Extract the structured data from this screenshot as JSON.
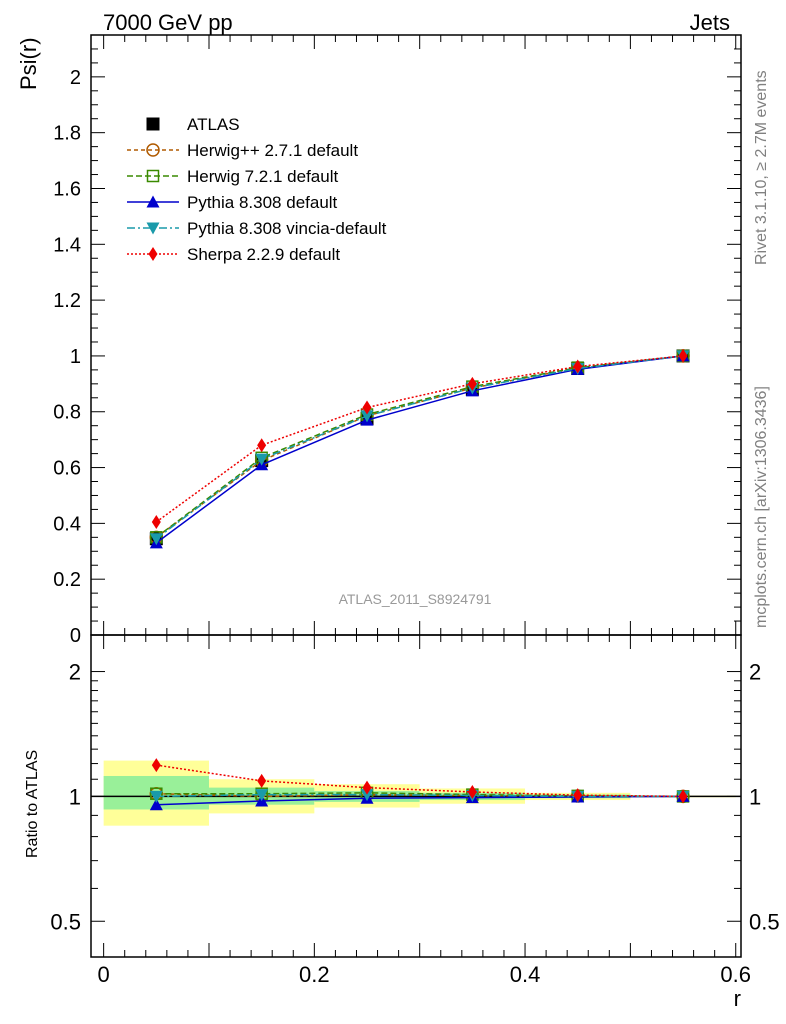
{
  "header": {
    "left": "7000 GeV pp",
    "right": "Jets"
  },
  "side_texts": {
    "rivet": "Rivet 3.1.10, ≥ 2.7M events",
    "mcplots": "mcplots.cern.ch [arXiv:1306.3436]"
  },
  "watermark": "ATLAS_2011_S8924791",
  "colors": {
    "atlas": "#000000",
    "herwigpp": "#b05a00",
    "herwig7": "#3a8a00",
    "pythia": "#0000cc",
    "vincia": "#1a9aaa",
    "sherpa": "#ee0000",
    "band_outer": "#ffff99",
    "band_inner": "#99f099"
  },
  "chart_data": [
    {
      "type": "line",
      "ylabel": "Psi(r)",
      "ylim": [
        0,
        2.15
      ],
      "xlim": [
        -0.012,
        0.605
      ],
      "yticks": [
        "0",
        "0.2",
        "0.4",
        "0.6",
        "0.8",
        "1",
        "1.2",
        "1.4",
        "1.6",
        "1.8",
        "2"
      ],
      "x": [
        0.05,
        0.15,
        0.25,
        0.35,
        0.45,
        0.55
      ],
      "legend_position": "top-left",
      "series": [
        {
          "name": "ATLAS",
          "values": [
            0.345,
            0.625,
            0.775,
            0.88,
            0.955,
            1.0
          ]
        },
        {
          "name": "Herwig++ 2.7.1 default",
          "values": [
            0.35,
            0.625,
            0.785,
            0.885,
            0.957,
            1.0
          ]
        },
        {
          "name": "Herwig 7.2.1 default",
          "values": [
            0.35,
            0.635,
            0.79,
            0.89,
            0.958,
            1.0
          ]
        },
        {
          "name": "Pythia 8.308 default",
          "values": [
            0.33,
            0.61,
            0.77,
            0.875,
            0.952,
            1.0
          ]
        },
        {
          "name": "Pythia 8.308 vincia-default",
          "values": [
            0.345,
            0.63,
            0.785,
            0.885,
            0.955,
            1.0
          ]
        },
        {
          "name": "Sherpa 2.2.9 default",
          "values": [
            0.405,
            0.68,
            0.815,
            0.9,
            0.962,
            1.0
          ]
        }
      ]
    },
    {
      "type": "line",
      "ylabel": "Ratio to ATLAS",
      "xlabel": "r",
      "yscale": "log",
      "ylim": [
        0.41,
        2.45
      ],
      "yticks": [
        "0.5",
        "1",
        "2"
      ],
      "xticks": [
        "0",
        "0.2",
        "0.4",
        "0.6"
      ],
      "x": [
        0.05,
        0.15,
        0.25,
        0.35,
        0.45,
        0.55
      ],
      "bands": [
        {
          "x0": 0.0,
          "x1": 0.1,
          "outer": [
            0.85,
            1.22
          ],
          "inner": [
            0.93,
            1.12
          ]
        },
        {
          "x0": 0.1,
          "x1": 0.2,
          "outer": [
            0.91,
            1.1
          ],
          "inner": [
            0.955,
            1.05
          ]
        },
        {
          "x0": 0.2,
          "x1": 0.3,
          "outer": [
            0.94,
            1.07
          ],
          "inner": [
            0.97,
            1.03
          ]
        },
        {
          "x0": 0.3,
          "x1": 0.4,
          "outer": [
            0.96,
            1.045
          ],
          "inner": [
            0.98,
            1.02
          ]
        },
        {
          "x0": 0.4,
          "x1": 0.5,
          "outer": [
            0.98,
            1.02
          ],
          "inner": [
            0.99,
            1.01
          ]
        },
        {
          "x0": 0.5,
          "x1": 0.6,
          "outer": [
            0.995,
            1.005
          ],
          "inner": [
            0.998,
            1.002
          ]
        }
      ],
      "series": [
        {
          "name": "Herwig++ 2.7.1 default",
          "values": [
            1.015,
            1.0,
            1.01,
            1.005,
            1.002,
            1.0
          ]
        },
        {
          "name": "Herwig 7.2.1 default",
          "values": [
            1.015,
            1.015,
            1.02,
            1.01,
            1.003,
            1.0
          ]
        },
        {
          "name": "Pythia 8.308 default",
          "values": [
            0.955,
            0.975,
            0.99,
            0.993,
            0.997,
            1.0
          ]
        },
        {
          "name": "Pythia 8.308 vincia-default",
          "values": [
            1.0,
            1.01,
            1.01,
            1.005,
            1.0,
            1.0
          ]
        },
        {
          "name": "Sherpa 2.2.9 default",
          "values": [
            1.19,
            1.09,
            1.05,
            1.025,
            1.007,
            1.0
          ]
        }
      ]
    }
  ]
}
